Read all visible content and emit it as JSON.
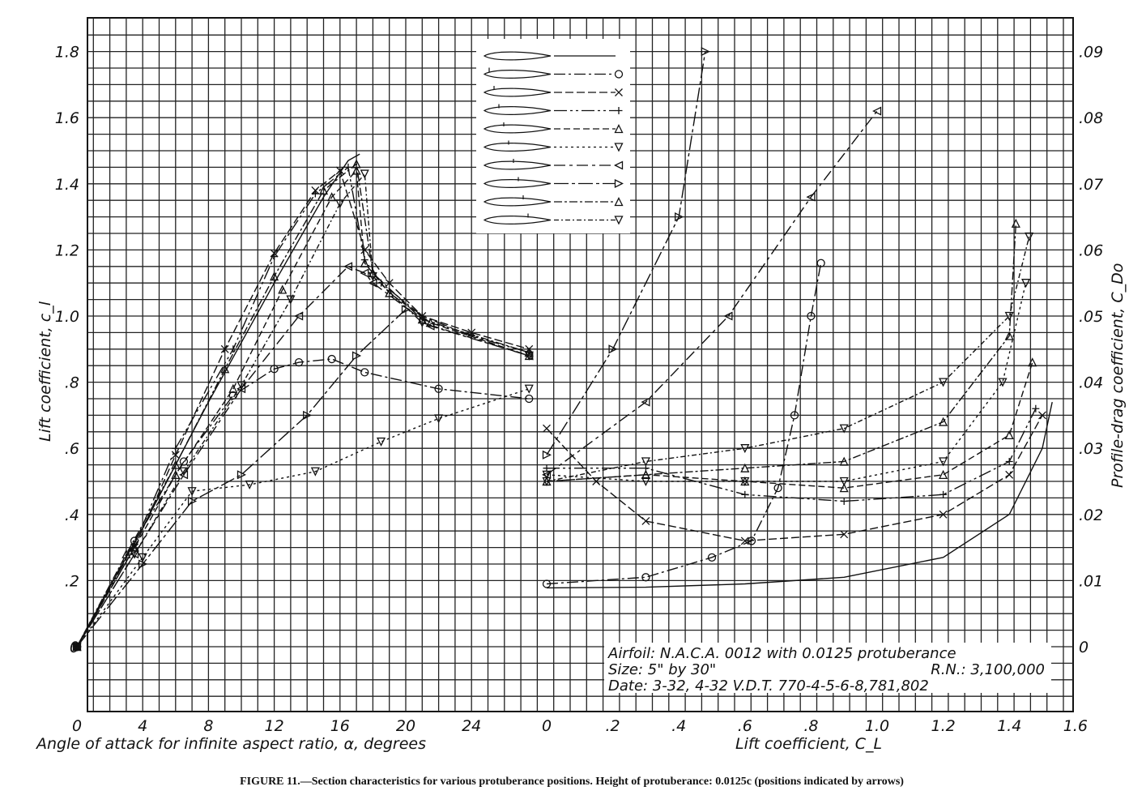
{
  "caption": "FIGURE 11.—Section characteristics for various protuberance positions.   Height of protuberance: 0.0125c (positions indicated by arrows)",
  "notes": {
    "airfoil": "Airfoil: N.A.C.A. 0012 with 0.0125 protuberance",
    "size": "Size: 5\" by 30\"",
    "rn": "R.N.: 3,100,000",
    "date": "Date: 3-32, 4-32 V.D.T. 770-4-5-6-8,781,802"
  },
  "chart_data": [
    {
      "type": "line",
      "xlabel": "Angle of attack for infinite aspect ratio, α, degrees",
      "ylabel": "Lift coefficient, c_l",
      "xlim": [
        0,
        28
      ],
      "ylim": [
        -0.2,
        1.9
      ],
      "x_ticks": [
        "0",
        "4",
        "8",
        "12",
        "16",
        "20",
        "24"
      ],
      "y_ticks": [
        "0",
        ".2",
        ".4",
        ".6",
        ".8",
        "1.0",
        "1.2",
        "1.4",
        "1.6",
        "1.8"
      ],
      "grid": true,
      "series": [
        {
          "marker": "none",
          "x": [
            0,
            4,
            8,
            12,
            15,
            16.5,
            17.2
          ],
          "y": [
            0,
            0.36,
            0.74,
            1.1,
            1.36,
            1.47,
            1.49
          ]
        },
        {
          "marker": "circle",
          "x": [
            0,
            3.5,
            6.5,
            9.5,
            12,
            13.5,
            15.5,
            17.5,
            22,
            27.5
          ],
          "y": [
            0,
            0.32,
            0.56,
            0.76,
            0.84,
            0.86,
            0.87,
            0.83,
            0.78,
            0.75
          ]
        },
        {
          "marker": "cross",
          "x": [
            0,
            3.5,
            6,
            9,
            12,
            14.5,
            16,
            17.5,
            19,
            21,
            24,
            27.5
          ],
          "y": [
            0,
            0.3,
            0.58,
            0.9,
            1.19,
            1.38,
            1.44,
            1.2,
            1.1,
            1.0,
            0.95,
            0.9
          ]
        },
        {
          "marker": "plus",
          "x": [
            0,
            3.5,
            6,
            9.5,
            12,
            14.5,
            16.5,
            17.5,
            18.5,
            21,
            24,
            27.5
          ],
          "y": [
            0,
            0.31,
            0.6,
            0.9,
            1.18,
            1.37,
            1.45,
            1.17,
            1.1,
            1.0,
            0.94,
            0.89
          ]
        },
        {
          "marker": "triangle-up",
          "x": [
            0,
            3.5,
            6,
            9.5,
            12.5,
            15.5,
            17,
            17.5,
            19,
            21.5,
            27.5
          ],
          "y": [
            0,
            0.3,
            0.52,
            0.78,
            1.08,
            1.36,
            1.44,
            1.16,
            1.07,
            0.98,
            0.88
          ]
        },
        {
          "marker": "triangle-down",
          "x": [
            0,
            4,
            7,
            10.5,
            14.5,
            18.5,
            22,
            27.5
          ],
          "y": [
            0,
            0.27,
            0.47,
            0.49,
            0.53,
            0.62,
            0.69,
            0.78
          ]
        },
        {
          "marker": "triangle-left",
          "x": [
            0,
            3.5,
            6.5,
            10,
            13.5,
            16.5,
            17.5,
            18,
            21.5,
            27.5
          ],
          "y": [
            0,
            0.28,
            0.52,
            0.78,
            1.0,
            1.15,
            1.13,
            1.1,
            0.97,
            0.88
          ]
        },
        {
          "marker": "triangle-right",
          "x": [
            0,
            4,
            7,
            10,
            14,
            17,
            20
          ],
          "y": [
            0,
            0.25,
            0.44,
            0.52,
            0.7,
            0.88,
            1.02
          ]
        },
        {
          "marker": "triangle-up-2",
          "x": [
            0,
            3,
            6,
            9,
            12,
            15,
            17,
            18,
            21,
            27.5
          ],
          "y": [
            0,
            0.28,
            0.55,
            0.84,
            1.12,
            1.38,
            1.46,
            1.13,
            0.99,
            0.89
          ]
        },
        {
          "marker": "triangle-down-2",
          "x": [
            0,
            3.5,
            6.5,
            10,
            13,
            16,
            17.5,
            18,
            21,
            27.5
          ],
          "y": [
            0,
            0.28,
            0.53,
            0.79,
            1.05,
            1.34,
            1.43,
            1.12,
            0.98,
            0.88
          ]
        }
      ]
    },
    {
      "type": "line",
      "xlabel": "Lift coefficient, C_L",
      "ylabel": "Profile-drag coefficient, C_Do",
      "xlim": [
        0,
        1.6
      ],
      "ylim": [
        -0.01,
        0.095
      ],
      "x_ticks": [
        "0",
        ".2",
        ".4",
        ".6",
        ".8",
        "1.0",
        "1.2",
        "1.4",
        "1.6"
      ],
      "y_ticks": [
        "0",
        ".01",
        ".02",
        ".03",
        ".04",
        ".05",
        ".06",
        ".07",
        ".08",
        ".09"
      ],
      "grid": true,
      "series": [
        {
          "marker": "none",
          "x": [
            0,
            0.3,
            0.6,
            0.9,
            1.2,
            1.4,
            1.5,
            1.53
          ],
          "y": [
            0.0089,
            0.009,
            0.0095,
            0.0105,
            0.0135,
            0.02,
            0.03,
            0.037
          ]
        },
        {
          "marker": "circle",
          "x": [
            0,
            0.3,
            0.5,
            0.62,
            0.7,
            0.75,
            0.8,
            0.83
          ],
          "y": [
            0.0095,
            0.0105,
            0.0135,
            0.016,
            0.024,
            0.035,
            0.05,
            0.058
          ]
        },
        {
          "marker": "cross",
          "x": [
            0,
            0.15,
            0.3,
            0.6,
            0.9,
            1.2,
            1.4,
            1.5
          ],
          "y": [
            0.033,
            0.025,
            0.019,
            0.016,
            0.017,
            0.02,
            0.026,
            0.035
          ]
        },
        {
          "marker": "plus",
          "x": [
            0,
            0.3,
            0.6,
            0.9,
            1.2,
            1.4,
            1.48
          ],
          "y": [
            0.027,
            0.027,
            0.023,
            0.022,
            0.023,
            0.028,
            0.036
          ]
        },
        {
          "marker": "triangle-up",
          "x": [
            0,
            0.3,
            0.6,
            0.9,
            1.2,
            1.4,
            1.47
          ],
          "y": [
            0.025,
            0.026,
            0.025,
            0.024,
            0.026,
            0.032,
            0.043
          ]
        },
        {
          "marker": "triangle-down",
          "x": [
            0,
            0.3,
            0.6,
            0.9,
            1.2,
            1.38,
            1.45
          ],
          "y": [
            0.026,
            0.025,
            0.025,
            0.025,
            0.028,
            0.04,
            0.055
          ]
        },
        {
          "marker": "triangle-left",
          "x": [
            0,
            0.3,
            0.55,
            0.8,
            1.0
          ],
          "y": [
            0.026,
            0.037,
            0.05,
            0.068,
            0.081
          ]
        },
        {
          "marker": "triangle-right",
          "x": [
            0,
            0.2,
            0.4,
            0.48
          ],
          "y": [
            0.029,
            0.045,
            0.065,
            0.09
          ]
        },
        {
          "marker": "triangle-up-2",
          "x": [
            0,
            0.3,
            0.6,
            0.9,
            1.2,
            1.4,
            1.42
          ],
          "y": [
            0.025,
            0.026,
            0.027,
            0.028,
            0.034,
            0.047,
            0.064
          ]
        },
        {
          "marker": "triangle-down-2",
          "x": [
            0,
            0.3,
            0.6,
            0.9,
            1.2,
            1.4,
            1.46
          ],
          "y": [
            0.025,
            0.028,
            0.03,
            0.033,
            0.04,
            0.05,
            0.062
          ]
        }
      ]
    }
  ]
}
